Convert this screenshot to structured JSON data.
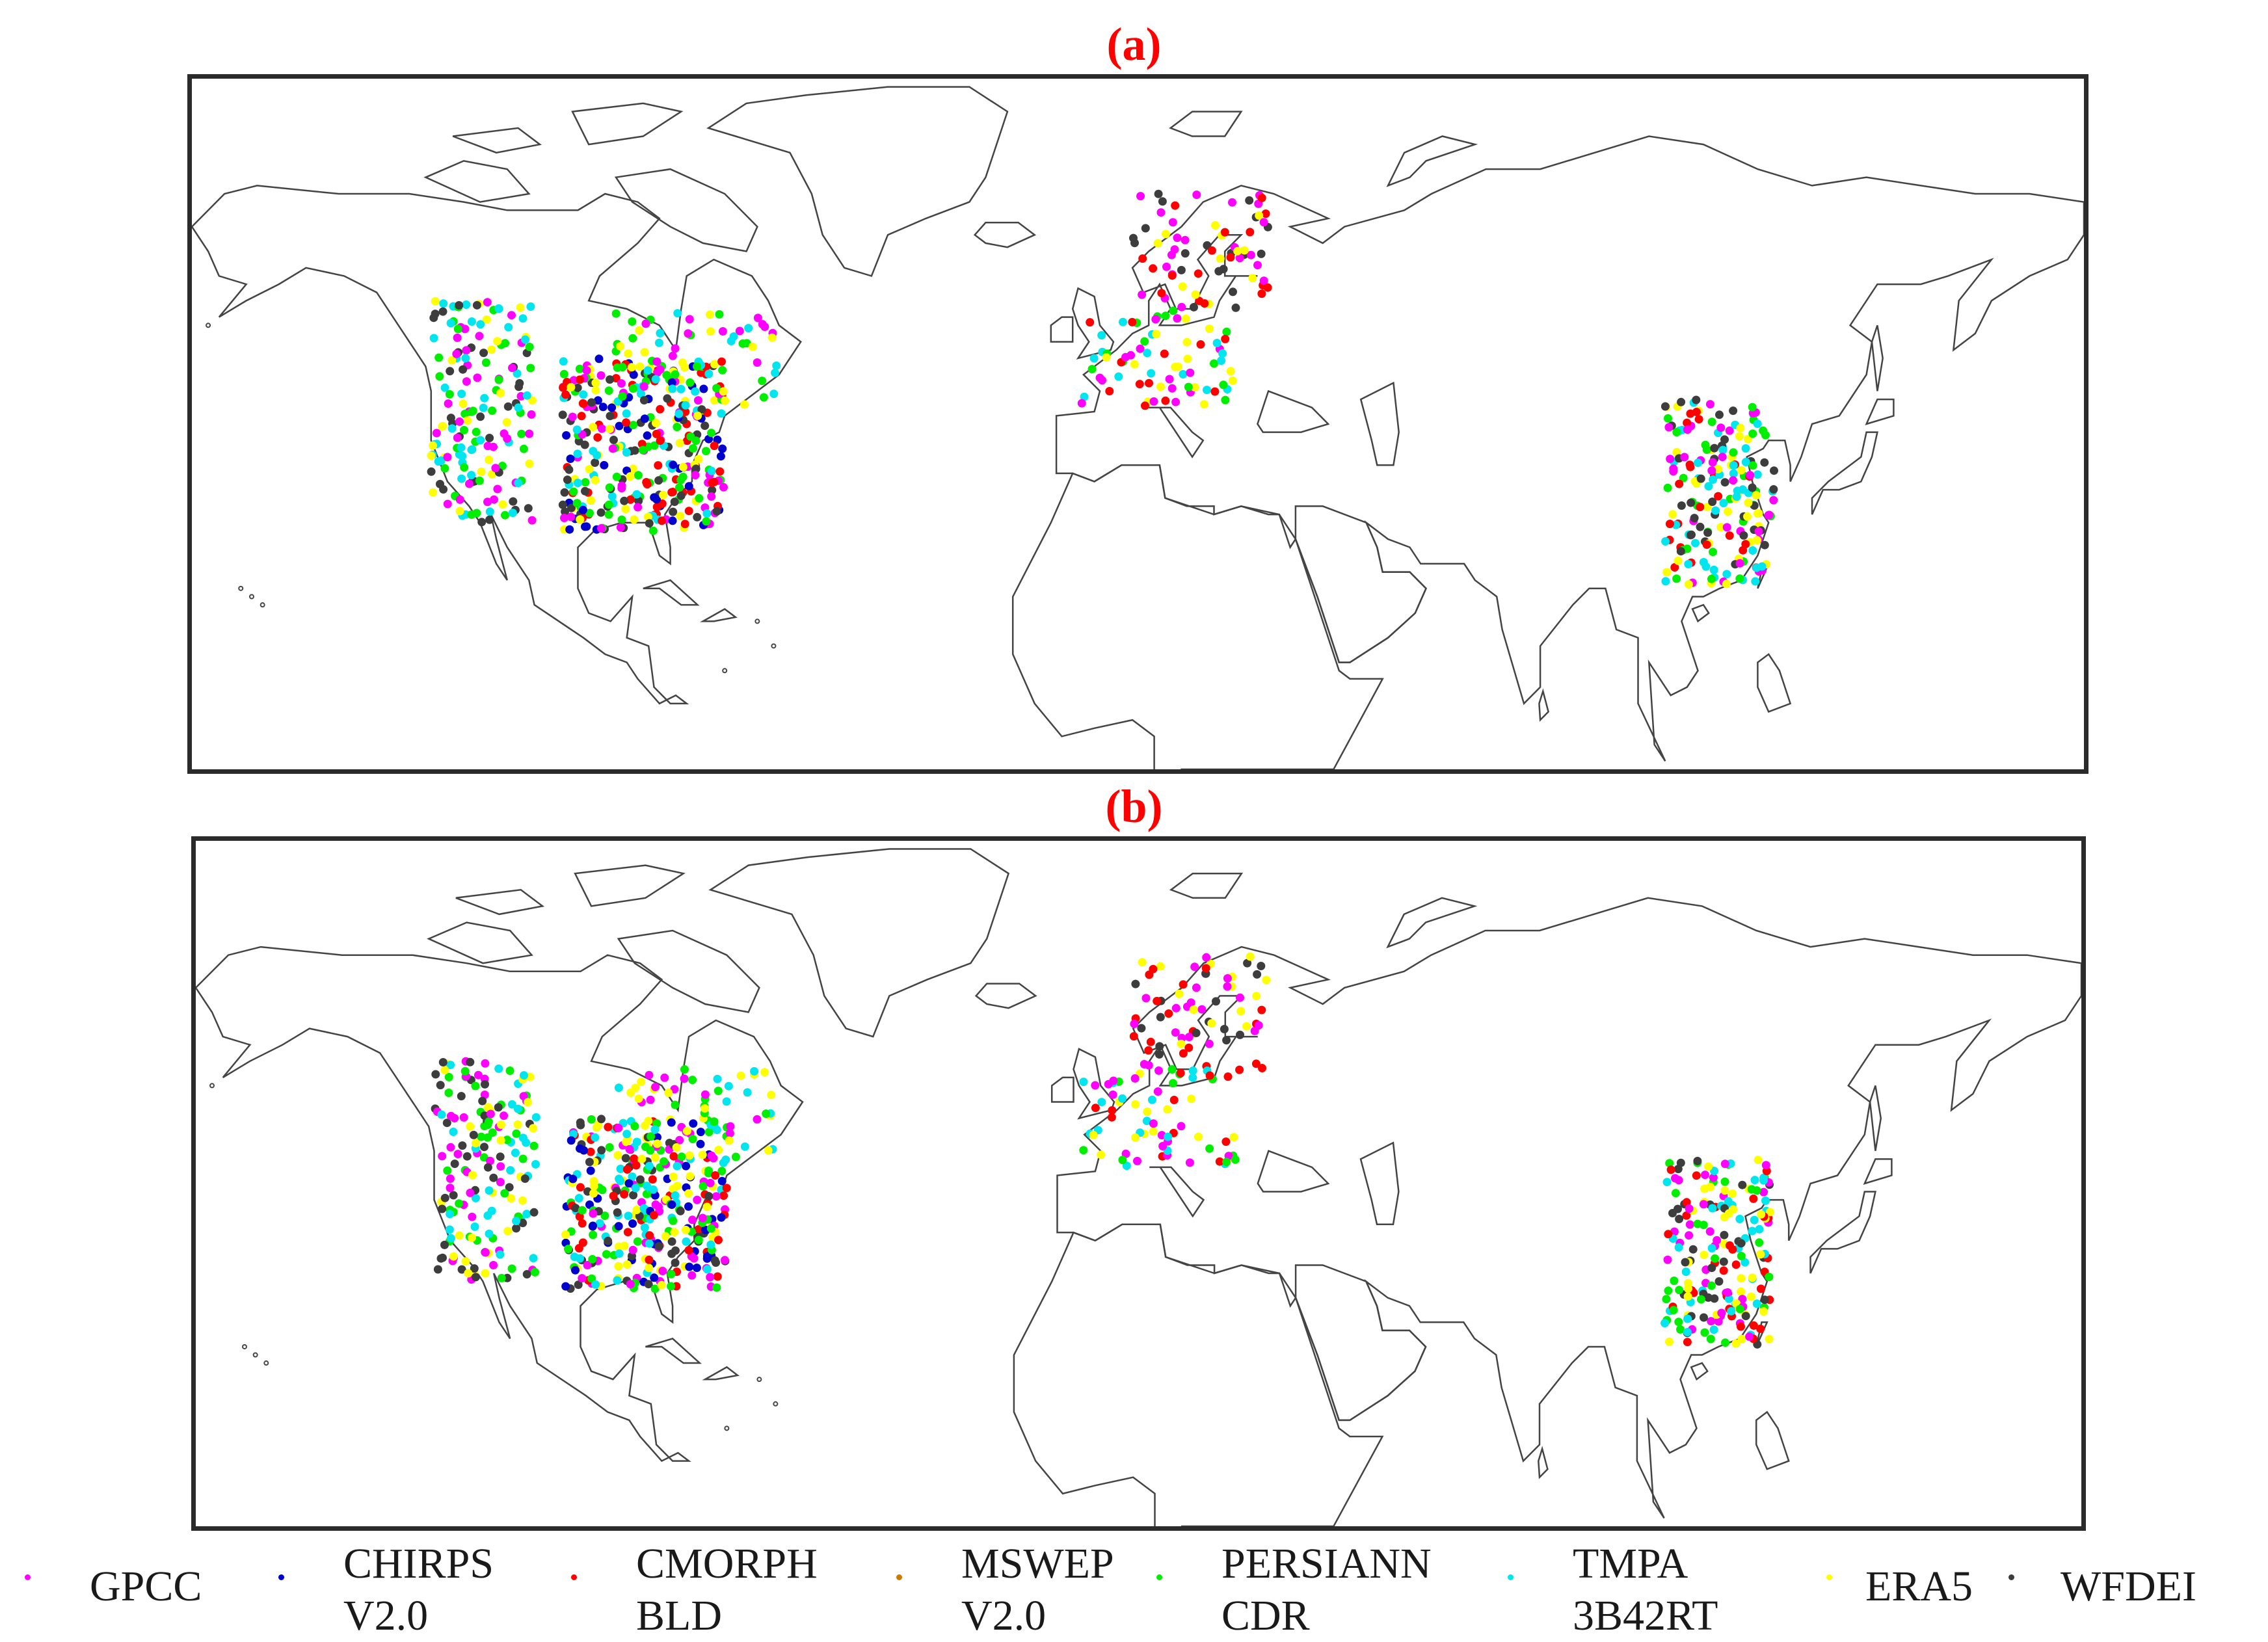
{
  "panels": [
    {
      "label": "(a)"
    },
    {
      "label": "(b)"
    }
  ],
  "legend": [
    {
      "label": "GPCC",
      "color": "#ff00ff"
    },
    {
      "label": "CHIRPS\nV2.0",
      "color": "#0000cc"
    },
    {
      "label": "CMORPH\nBLD",
      "color": "#ff0000"
    },
    {
      "label": "MSWEP\nV2.0",
      "color": "#cc7a00"
    },
    {
      "label": "PERSIANN\nCDR",
      "color": "#00ee00"
    },
    {
      "label": "TMPA\n3B42RT",
      "color": "#00e5ee"
    },
    {
      "label": "ERA5",
      "color": "#ffff00"
    },
    {
      "label": "WFDEI",
      "color": "#3d3d3d"
    }
  ],
  "colors": {
    "title": "#ff0000",
    "frame": "#2b2b2b",
    "coastline": "#444444"
  },
  "clusters": [
    {
      "region": "western-north-america",
      "lon": [
        -124,
        -105
      ],
      "lat": [
        30,
        57
      ],
      "mix": [
        "TMPA 3B42RT",
        "ERA5",
        "WFDEI",
        "GPCC",
        "PERSIANN CDR"
      ]
    },
    {
      "region": "central-eastern-north-america",
      "lon": [
        -100,
        -70
      ],
      "lat": [
        29,
        50
      ],
      "mix": [
        "WFDEI",
        "TMPA 3B42RT",
        "ERA5",
        "PERSIANN CDR",
        "GPCC",
        "CHIRPS V2.0",
        "CMORPH BLD"
      ]
    },
    {
      "region": "eastern-canada",
      "lon": [
        -90,
        -60
      ],
      "lat": [
        44,
        56
      ],
      "mix": [
        "PERSIANN CDR",
        "TMPA 3B42RT",
        "GPCC",
        "ERA5"
      ]
    },
    {
      "region": "scandinavia",
      "lon": [
        5,
        30
      ],
      "lat": [
        56,
        70
      ],
      "mix": [
        "WFDEI",
        "ERA5",
        "CMORPH BLD",
        "GPCC"
      ]
    },
    {
      "region": "central-europe",
      "lon": [
        -5,
        25
      ],
      "lat": [
        44,
        56
      ],
      "mix": [
        "PERSIANN CDR",
        "CMORPH BLD",
        "TMPA 3B42RT",
        "ERA5",
        "GPCC"
      ]
    },
    {
      "region": "eastern-china",
      "lon": [
        103,
        123
      ],
      "lat": [
        22,
        45
      ],
      "mix": [
        "TMPA 3B42RT",
        "PERSIANN CDR",
        "WFDEI",
        "GPCC",
        "ERA5",
        "CMORPH BLD"
      ]
    }
  ]
}
